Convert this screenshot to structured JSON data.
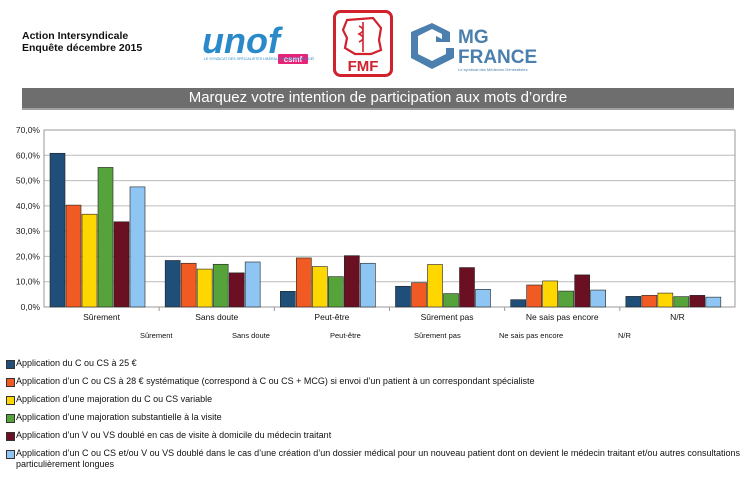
{
  "header": {
    "line1": "Action Intersyndicale",
    "line2": "Enquête décembre 2015"
  },
  "logos": {
    "unof": {
      "name": "unof",
      "badge": "csmf",
      "tagline": "LE SYNDICAT DES SPÉCIALISTES LIBÉRAUX EN MÉDECINE GÉNÉRALE",
      "color": "#2a8ac9",
      "badge_color": "#e5247a"
    },
    "fmf": {
      "name": "FMF",
      "color": "#d0212d"
    },
    "mgfrance": {
      "name1": "MG",
      "name2": "FRANCE",
      "tagline": "Le syndicat des Médecins Généralistes",
      "color": "#4b7fae"
    }
  },
  "banner": {
    "title": "Marquez votre intention de participation aux mots d’ordre"
  },
  "chart_data": {
    "type": "bar",
    "categories": [
      "Sûrement",
      "Sans doute",
      "Peut-être",
      "Sûrement pas",
      "Ne sais pas encore",
      "N/R"
    ],
    "y_ticks": [
      "0,0%",
      "10,0%",
      "20,0%",
      "30,0%",
      "40,0%",
      "50,0%",
      "60,0%",
      "70,0%"
    ],
    "ylim": [
      0,
      70
    ],
    "grid": true,
    "legend_position": "bottom",
    "series": [
      {
        "name": "Application du C ou CS à 25 €",
        "color": "#1f4e79",
        "values": [
          60.8,
          18.4,
          6.2,
          8.2,
          2.9,
          4.2
        ]
      },
      {
        "name": "Application d’un C ou CS à 28 € systématique (correspond à C ou CS + MCG) si envoi d’un patient à un correspondant spécialiste",
        "color": "#f15a22",
        "values": [
          40.3,
          17.3,
          19.4,
          9.6,
          8.7,
          4.6
        ]
      },
      {
        "name": "Application d’une majoration du C ou CS variable",
        "color": "#ffd700",
        "values": [
          36.7,
          15.0,
          16.0,
          16.8,
          10.3,
          5.5
        ]
      },
      {
        "name": "Application d’une majoration substantielle à la visite",
        "color": "#57a33b",
        "values": [
          55.2,
          16.9,
          12.0,
          5.3,
          6.3,
          4.1
        ]
      },
      {
        "name": "Application d’un V ou VS doublé en cas de visite à domicile du médecin traitant",
        "color": "#6b0f22",
        "values": [
          33.7,
          13.5,
          20.3,
          15.6,
          12.7,
          4.6
        ]
      },
      {
        "name": "Application d’un C ou CS et/ou V ou VS doublé dans le cas d’une création d’un dossier médical pour un nouveau patient dont on devient le médecin traitant et/ou autres consultations particulièrement longues",
        "color": "#8ec5f2",
        "values": [
          47.5,
          17.8,
          17.3,
          7.0,
          6.7,
          3.9
        ]
      }
    ],
    "secondary_category_labels": [
      "Sûrement",
      "Sans doute",
      "Peut-être",
      "Sûrement pas",
      "Ne sais pas encore",
      "N/R"
    ]
  }
}
